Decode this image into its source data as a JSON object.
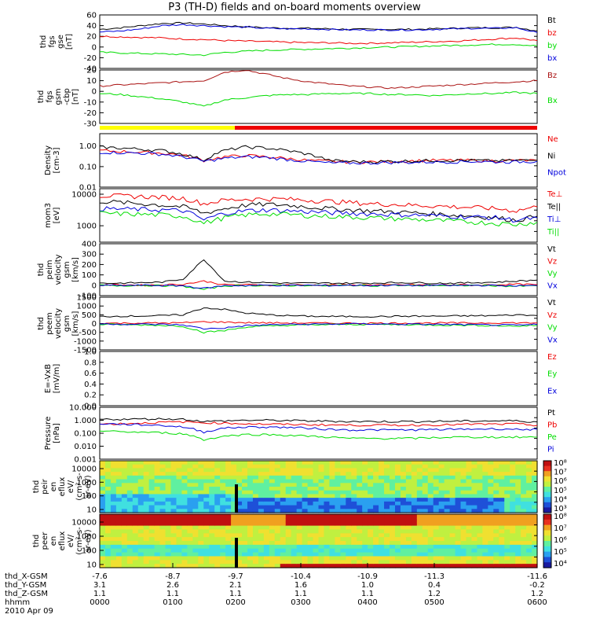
{
  "title": "P3 (TH-D) fields and on-board moments overview",
  "colors": {
    "black": "#000000",
    "red": "#ee0000",
    "green": "#00dd00",
    "blue": "#0000dd",
    "darkred": "#aa1111",
    "yellow": "#ffff00"
  },
  "chart_data": [
    {
      "type": "line",
      "ylabel": [
        "thd",
        "fgs",
        "gse",
        "[nT]"
      ],
      "yticks": [
        "60",
        "40",
        "20",
        "0",
        "-20",
        "-40"
      ],
      "series": [
        {
          "name": "Bt",
          "color": "#000000",
          "values": [
            33,
            36,
            40,
            44,
            45,
            43,
            40,
            38,
            36,
            35,
            35,
            34,
            33,
            33,
            33,
            33,
            34,
            35,
            36,
            36,
            37,
            30
          ]
        },
        {
          "name": "bz",
          "color": "#ee0000",
          "values": [
            20,
            19,
            18,
            17,
            15,
            14,
            12,
            11,
            10,
            9,
            8,
            8,
            7,
            7,
            8,
            9,
            10,
            11,
            13,
            15,
            17,
            12
          ]
        },
        {
          "name": "by",
          "color": "#00dd00",
          "values": [
            -10,
            -11,
            -12,
            -13,
            -14,
            -15,
            -10,
            -8,
            -6,
            -5,
            -4,
            -3,
            -2,
            -1,
            0,
            1,
            2,
            3,
            4,
            5,
            5,
            2
          ]
        },
        {
          "name": "bx",
          "color": "#0000dd",
          "values": [
            28,
            30,
            34,
            40,
            42,
            40,
            38,
            37,
            35,
            34,
            34,
            33,
            32,
            32,
            32,
            32,
            33,
            34,
            35,
            35,
            36,
            27
          ]
        }
      ]
    },
    {
      "type": "line",
      "ylabel": [
        "thd",
        "fgs",
        "gsm",
        "-cbp",
        "[nT]"
      ],
      "yticks": [
        "20",
        "10",
        "0",
        "-10",
        "-20",
        "-30"
      ],
      "series": [
        {
          "name": "Bz",
          "color": "#aa1111",
          "values": [
            5,
            6,
            7,
            8,
            9,
            10,
            18,
            20,
            16,
            12,
            9,
            7,
            5,
            4,
            3,
            4,
            5,
            6,
            7,
            8,
            9,
            10
          ]
        },
        {
          "name": "Bx",
          "color": "#00dd00",
          "values": [
            -2,
            -3,
            -5,
            -7,
            -10,
            -14,
            -8,
            -6,
            -4,
            -3,
            -3,
            -2,
            -2,
            -2,
            -3,
            -3,
            -4,
            -3,
            -2,
            -2,
            -1,
            -2
          ]
        }
      ]
    },
    {
      "type": "line",
      "log": true,
      "ylabel": [
        "Density",
        "[cm-3]"
      ],
      "yticks": [
        "1.00",
        "0.10",
        "0.01"
      ],
      "series": [
        {
          "name": "Ne",
          "color": "#ee0000",
          "values": [
            0.6,
            0.55,
            0.5,
            0.45,
            0.35,
            0.2,
            0.3,
            0.35,
            0.3,
            0.25,
            0.2,
            0.18,
            0.17,
            0.17,
            0.18,
            0.19,
            0.2,
            0.2,
            0.2,
            0.19,
            0.2,
            0.2
          ]
        },
        {
          "name": "Ni",
          "color": "#000000",
          "values": [
            0.9,
            0.8,
            0.7,
            0.6,
            0.4,
            0.2,
            0.6,
            0.9,
            0.8,
            0.6,
            0.4,
            0.2,
            0.18,
            0.17,
            0.18,
            0.19,
            0.2,
            0.2,
            0.2,
            0.19,
            0.2,
            0.2
          ]
        },
        {
          "name": "Npot",
          "color": "#0000dd",
          "values": [
            0.5,
            0.48,
            0.45,
            0.4,
            0.3,
            0.18,
            0.25,
            0.3,
            0.28,
            0.22,
            0.18,
            0.15,
            0.15,
            0.15,
            0.16,
            0.16,
            0.17,
            0.17,
            0.18,
            0.17,
            0.17,
            0.18
          ]
        }
      ]
    },
    {
      "type": "line",
      "log": true,
      "ylabel": [
        "mom3",
        "[eV]"
      ],
      "yticks": [
        "10000",
        "1000"
      ],
      "series": [
        {
          "name": "Te⊥",
          "color": "#ee0000",
          "values": [
            9000,
            8800,
            8500,
            8000,
            7500,
            5000,
            6500,
            7000,
            7200,
            7000,
            6500,
            6000,
            5500,
            5000,
            4800,
            4500,
            4300,
            4000,
            3800,
            3500,
            3000,
            4000
          ]
        },
        {
          "name": "Te||",
          "color": "#000000",
          "values": [
            6000,
            5500,
            5000,
            4500,
            4000,
            2500,
            3500,
            4500,
            4800,
            4500,
            4000,
            3500,
            3200,
            3000,
            2800,
            2600,
            2400,
            2200,
            2000,
            1800,
            1500,
            2000
          ]
        },
        {
          "name": "Ti⊥",
          "color": "#0000dd",
          "values": [
            3500,
            3400,
            3300,
            3200,
            3000,
            1500,
            2500,
            3000,
            3200,
            3000,
            2800,
            2600,
            2500,
            2400,
            2300,
            2200,
            2100,
            2000,
            1900,
            1800,
            1500,
            1800
          ]
        },
        {
          "name": "Ti||",
          "color": "#00dd00",
          "values": [
            2500,
            2400,
            2300,
            2200,
            2000,
            1200,
            1800,
            2200,
            2400,
            2300,
            2100,
            2000,
            1900,
            1800,
            1700,
            1600,
            1500,
            1400,
            1300,
            1200,
            1100,
            1300
          ]
        }
      ]
    },
    {
      "type": "line",
      "ylabel": [
        "thd",
        "peim",
        "velocity",
        "gsm",
        "[km/s]"
      ],
      "yticks": [
        "400",
        "300",
        "200",
        "100",
        "0",
        "-100"
      ],
      "series": [
        {
          "name": "Vt",
          "color": "#000000",
          "values": [
            20,
            20,
            25,
            30,
            60,
            250,
            40,
            30,
            25,
            20,
            20,
            20,
            20,
            20,
            25,
            25,
            20,
            20,
            25,
            30,
            40,
            50
          ]
        },
        {
          "name": "Vz",
          "color": "#ee0000",
          "values": [
            0,
            5,
            0,
            5,
            10,
            40,
            5,
            5,
            0,
            5,
            0,
            5,
            0,
            5,
            0,
            5,
            0,
            5,
            0,
            5,
            10,
            5
          ]
        },
        {
          "name": "Vy",
          "color": "#00dd00",
          "values": [
            0,
            -5,
            0,
            -5,
            -10,
            -40,
            -5,
            -5,
            0,
            -5,
            0,
            -5,
            0,
            -5,
            0,
            -5,
            0,
            -5,
            0,
            -5,
            -10,
            -5
          ]
        },
        {
          "name": "Vx",
          "color": "#0000dd",
          "values": [
            0,
            -3,
            0,
            -3,
            -5,
            -30,
            -3,
            -3,
            0,
            -3,
            0,
            -3,
            0,
            -3,
            0,
            -3,
            0,
            -3,
            0,
            -3,
            -5,
            -3
          ]
        }
      ]
    },
    {
      "type": "line",
      "ylabel": [
        "thd",
        "peem",
        "velocity",
        "gsm",
        "[km/s]"
      ],
      "yticks": [
        "1500",
        "1000",
        "500",
        "0",
        "-500",
        "-1000",
        "-1500"
      ],
      "series": [
        {
          "name": "Vt",
          "color": "#000000",
          "values": [
            400,
            420,
            430,
            450,
            500,
            900,
            800,
            600,
            500,
            450,
            420,
            400,
            400,
            400,
            410,
            420,
            420,
            430,
            440,
            450,
            500,
            450
          ]
        },
        {
          "name": "Vz",
          "color": "#ee0000",
          "values": [
            20,
            20,
            30,
            30,
            40,
            100,
            80,
            50,
            40,
            30,
            30,
            20,
            20,
            20,
            20,
            30,
            30,
            30,
            30,
            40,
            40,
            30
          ]
        },
        {
          "name": "Vy",
          "color": "#00dd00",
          "values": [
            -50,
            -60,
            -80,
            -100,
            -150,
            -500,
            -400,
            -200,
            -150,
            -100,
            -80,
            -60,
            -50,
            -50,
            -60,
            -70,
            -80,
            -90,
            -100,
            -120,
            -150,
            -100
          ]
        },
        {
          "name": "Vx",
          "color": "#0000dd",
          "values": [
            -20,
            -30,
            -40,
            -50,
            -80,
            -300,
            -250,
            -120,
            -80,
            -50,
            -40,
            -30,
            -20,
            -20,
            -30,
            -40,
            -50,
            -60,
            -70,
            -80,
            -100,
            -60
          ]
        }
      ]
    },
    {
      "type": "line",
      "ylabel": [
        "E=-VxB",
        "[mV/m]"
      ],
      "yticks": [
        "1.0",
        "0.8",
        "0.6",
        "0.4",
        "0.2",
        "0.0"
      ],
      "series": [
        {
          "name": "Ez",
          "color": "#ee0000",
          "values": []
        },
        {
          "name": "Ey",
          "color": "#00dd00",
          "values": []
        },
        {
          "name": "Ex",
          "color": "#0000dd",
          "values": []
        }
      ]
    },
    {
      "type": "line",
      "log": true,
      "ylabel": [
        "Pressure",
        "[nPa]"
      ],
      "yticks": [
        "10.000",
        "1.000",
        "0.100",
        "0.010",
        "0.001"
      ],
      "series": [
        {
          "name": "Pt",
          "color": "#000000",
          "values": [
            1.2,
            1.2,
            1.25,
            1.3,
            1.2,
            0.8,
            0.9,
            1.0,
            1.0,
            0.95,
            0.9,
            0.85,
            0.8,
            0.8,
            0.8,
            0.8,
            0.82,
            0.85,
            0.88,
            0.9,
            0.9,
            0.75
          ]
        },
        {
          "name": "Pb",
          "color": "#ee0000",
          "values": [
            0.5,
            0.55,
            0.6,
            0.7,
            0.75,
            0.65,
            0.6,
            0.55,
            0.5,
            0.48,
            0.46,
            0.44,
            0.42,
            0.42,
            0.42,
            0.42,
            0.44,
            0.46,
            0.5,
            0.5,
            0.52,
            0.4
          ]
        },
        {
          "name": "Pe",
          "color": "#00dd00",
          "values": [
            0.15,
            0.13,
            0.12,
            0.11,
            0.09,
            0.03,
            0.06,
            0.08,
            0.08,
            0.07,
            0.06,
            0.05,
            0.04,
            0.04,
            0.04,
            0.04,
            0.045,
            0.05,
            0.05,
            0.05,
            0.05,
            0.05
          ]
        },
        {
          "name": "Pi",
          "color": "#0000dd",
          "values": [
            0.55,
            0.5,
            0.45,
            0.4,
            0.3,
            0.12,
            0.25,
            0.3,
            0.3,
            0.28,
            0.25,
            0.2,
            0.18,
            0.18,
            0.18,
            0.18,
            0.19,
            0.2,
            0.21,
            0.22,
            0.2,
            0.2
          ]
        }
      ]
    },
    {
      "type": "heatmap",
      "ylabel": [
        "thd",
        "peir",
        "en",
        "eflux",
        "eV/",
        "(cm²-s-",
        "sr-eV)"
      ],
      "yticks": [
        "10000",
        "1000",
        "100",
        "10"
      ],
      "colorbar": [
        "10⁸",
        "10⁷",
        "10⁶",
        "10⁵",
        "10⁴",
        "10³"
      ]
    },
    {
      "type": "heatmap",
      "ylabel": [
        "thd",
        "peer",
        "en",
        "eflux",
        "eV/",
        "(cm²-s-",
        "sr-eV)"
      ],
      "yticks": [
        "10000",
        "1000",
        "100",
        "10"
      ],
      "colorbar": [
        "10⁸",
        "10⁷",
        "10⁶",
        "10⁵",
        "10⁴"
      ]
    }
  ],
  "footer": {
    "rows": [
      {
        "label": "thd_X-GSM",
        "values": [
          "-7.6",
          "-8.7",
          "-9.7",
          "-10.4",
          "-10.9",
          "-11.3",
          "-11.6"
        ]
      },
      {
        "label": "thd_Y-GSM",
        "values": [
          "3.1",
          "2.6",
          "2.1",
          "1.6",
          "1.0",
          "0.4",
          "-0.2"
        ]
      },
      {
        "label": "thd_Z-GSM",
        "values": [
          "1.1",
          "1.1",
          "1.1",
          "1.1",
          "1.1",
          "1.2",
          "1.2"
        ]
      },
      {
        "label": "hhmm",
        "values": [
          "0000",
          "0100",
          "0200",
          "0300",
          "0400",
          "0500",
          "0600"
        ]
      }
    ],
    "date": "2010 Apr 09"
  }
}
